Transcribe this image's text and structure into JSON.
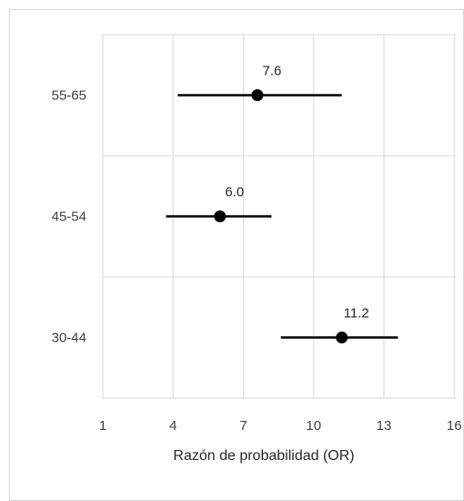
{
  "chart_data": {
    "type": "scatter",
    "subtype": "forest-plot",
    "categories": [
      "55-65",
      "45-54",
      "30-44"
    ],
    "points": [
      {
        "category": "55-65",
        "or": 7.6,
        "ci_low": 4.2,
        "ci_high": 11.2,
        "label": "7.6"
      },
      {
        "category": "45-54",
        "or": 6.0,
        "ci_low": 3.7,
        "ci_high": 8.2,
        "label": "6.0"
      },
      {
        "category": "30-44",
        "or": 11.2,
        "ci_low": 8.6,
        "ci_high": 13.6,
        "label": "11.2"
      }
    ],
    "x_ticks": [
      1,
      4,
      7,
      10,
      13,
      16
    ],
    "x_tick_labels": [
      "1",
      "4",
      "7",
      "10",
      "13",
      "16"
    ],
    "xlim": [
      1,
      16
    ],
    "xlabel": "Razón de probabilidad (OR)",
    "grid": true,
    "colors": {
      "marker": "#000000",
      "grid": "#d9d9d9"
    }
  }
}
